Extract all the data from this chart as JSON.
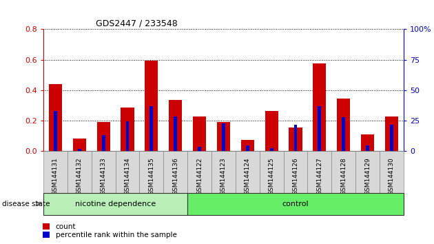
{
  "title": "GDS2447 / 233548",
  "samples": [
    "GSM144131",
    "GSM144132",
    "GSM144133",
    "GSM144134",
    "GSM144135",
    "GSM144136",
    "GSM144122",
    "GSM144123",
    "GSM144124",
    "GSM144125",
    "GSM144126",
    "GSM144127",
    "GSM144128",
    "GSM144129",
    "GSM144130"
  ],
  "count_values": [
    0.44,
    0.085,
    0.19,
    0.285,
    0.595,
    0.335,
    0.23,
    0.19,
    0.075,
    0.265,
    0.155,
    0.575,
    0.345,
    0.11,
    0.23
  ],
  "percentile_values": [
    0.265,
    0.015,
    0.105,
    0.195,
    0.295,
    0.23,
    0.03,
    0.185,
    0.04,
    0.02,
    0.175,
    0.295,
    0.225,
    0.04,
    0.175
  ],
  "group_labels": [
    "nicotine dependence",
    "control"
  ],
  "group_sizes": [
    6,
    9
  ],
  "group_colors_nicotine": "#b8f0b8",
  "group_colors_control": "#66ee66",
  "bar_color_count": "#cc0000",
  "bar_color_pct": "#0000cc",
  "ylim_left": [
    0,
    0.8
  ],
  "ylim_right": [
    0,
    100
  ],
  "yticks_left": [
    0,
    0.2,
    0.4,
    0.6,
    0.8
  ],
  "yticks_right": [
    0,
    25,
    50,
    75,
    100
  ],
  "grid_color": "#000000",
  "bg_color": "#ffffff",
  "legend_count_label": "count",
  "legend_pct_label": "percentile rank within the sample",
  "disease_state_label": "disease state",
  "bar_width": 0.55
}
